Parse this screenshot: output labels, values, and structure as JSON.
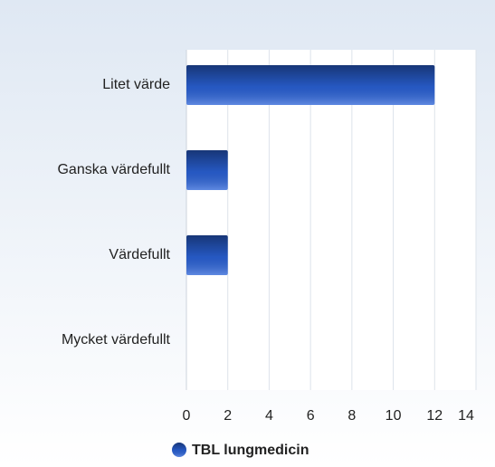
{
  "chart_data": {
    "type": "bar",
    "orientation": "horizontal",
    "categories": [
      "Litet värde",
      "Ganska värdefullt",
      "Värdefullt",
      "Mycket värdefullt"
    ],
    "series": [
      {
        "name": "TBL lungmedicin",
        "color": "#2a62d8",
        "values": [
          12,
          2,
          2,
          0
        ]
      }
    ],
    "xlim": [
      0,
      14
    ],
    "xticks": [
      0,
      2,
      4,
      6,
      8,
      10,
      12,
      14
    ],
    "grid": true,
    "legend": "bottom"
  }
}
